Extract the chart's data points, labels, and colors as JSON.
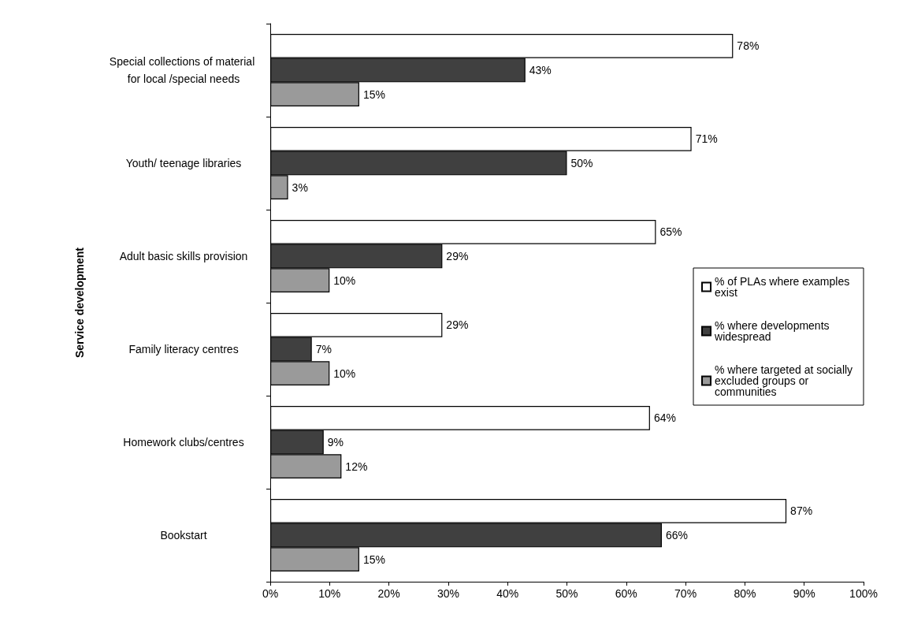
{
  "chart_data": {
    "type": "bar",
    "orientation": "horizontal",
    "ylabel": "Service development",
    "categories": [
      "Special collections of material for local /special needs",
      "Youth/ teenage libraries",
      "Adult basic skills provision",
      "Family literacy centres",
      "Homework clubs/centres",
      "Bookstart"
    ],
    "series": [
      {
        "name": "% of PLAs where examples exist",
        "color": "#ffffff",
        "values": [
          78,
          71,
          65,
          29,
          64,
          87
        ],
        "value_labels": [
          "78%",
          "71%",
          "65%",
          "29%",
          "64%",
          "87%"
        ]
      },
      {
        "name": "% where developments widespread",
        "color": "#404040",
        "values": [
          43,
          50,
          29,
          7,
          9,
          66
        ],
        "value_labels": [
          "43%",
          "50%",
          "29%",
          "7%",
          "9%",
          "66%"
        ]
      },
      {
        "name": "% where targeted at socially excluded groups or communities",
        "color": "#9a9a9a",
        "values": [
          15,
          3,
          10,
          10,
          12,
          15
        ],
        "value_labels": [
          "15%",
          "3%",
          "10%",
          "10%",
          "12%",
          "15%"
        ]
      }
    ],
    "xlim": [
      0,
      100
    ],
    "xticks": [
      {
        "value": 0,
        "label": "0%"
      },
      {
        "value": 10,
        "label": "10%"
      },
      {
        "value": 20,
        "label": "20%"
      },
      {
        "value": 30,
        "label": "30%"
      },
      {
        "value": 40,
        "label": "40%"
      },
      {
        "value": 50,
        "label": "50%"
      },
      {
        "value": 60,
        "label": "60%"
      },
      {
        "value": 70,
        "label": "70%"
      },
      {
        "value": 80,
        "label": "80%"
      },
      {
        "value": 90,
        "label": "90%"
      },
      {
        "value": 100,
        "label": "100%"
      }
    ],
    "grid": false,
    "legend": "right"
  }
}
